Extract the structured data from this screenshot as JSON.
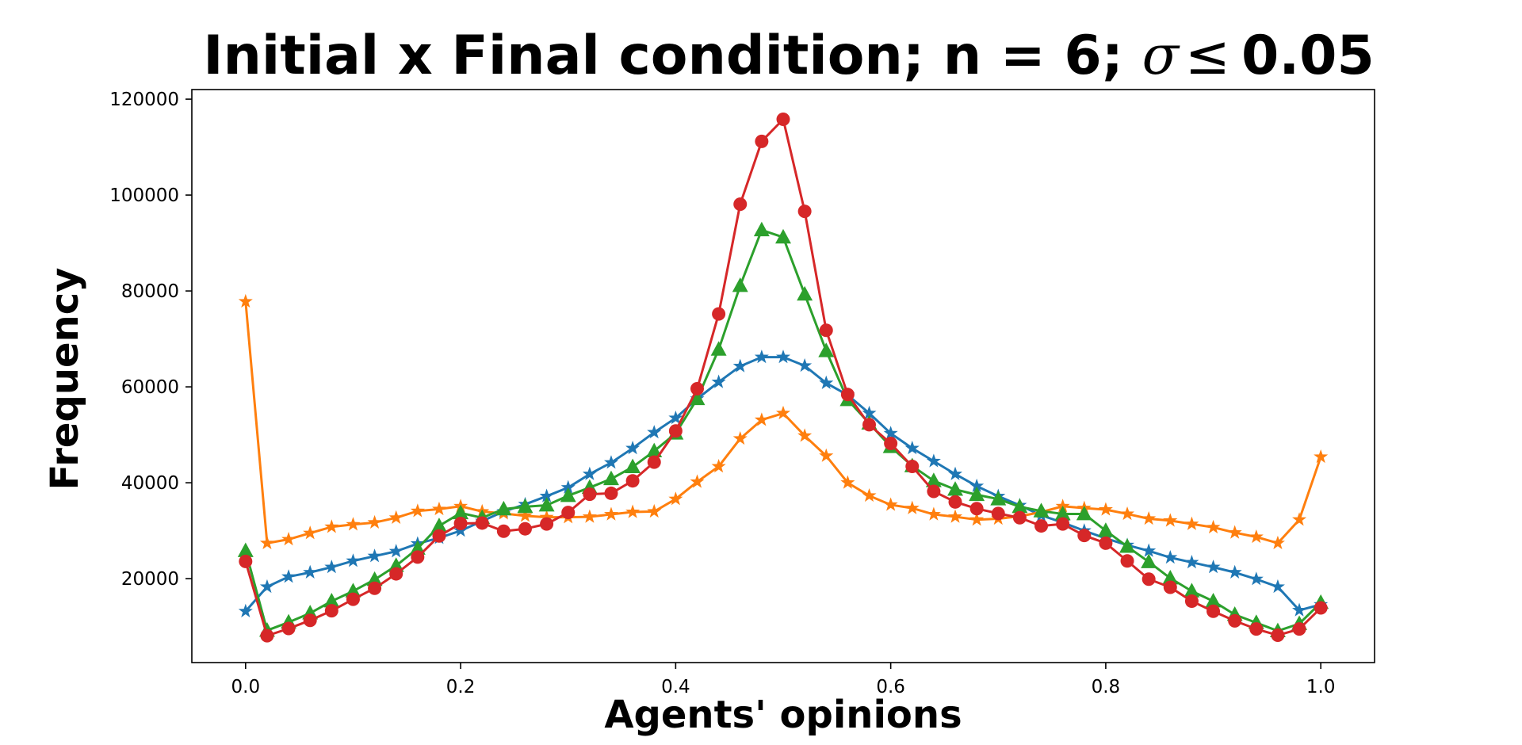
{
  "chart_data": {
    "type": "line",
    "title": "Initial x Final condition; n = 6; σ ≤ 0.05",
    "title_parts": {
      "prefix": "Initial x Final condition; n = 6; ",
      "sigma": "σ",
      "le": "≤",
      "suffix": "0.05"
    },
    "xlabel": "Agents' opinions",
    "ylabel": "Frequency",
    "xlim": [
      -0.05,
      1.05
    ],
    "ylim": [
      2500,
      122000
    ],
    "xticks": [
      0.0,
      0.2,
      0.4,
      0.6,
      0.8,
      1.0
    ],
    "xtick_labels": [
      "0.0",
      "0.2",
      "0.4",
      "0.6",
      "0.8",
      "1.0"
    ],
    "yticks": [
      20000,
      40000,
      60000,
      80000,
      100000,
      120000
    ],
    "ytick_labels": [
      "20000",
      "40000",
      "60000",
      "80000",
      "100000",
      "120000"
    ],
    "grid": false,
    "legend": "none",
    "x": [
      0.0,
      0.02,
      0.04,
      0.06,
      0.08,
      0.1,
      0.12,
      0.14,
      0.16,
      0.18,
      0.2,
      0.22,
      0.24,
      0.26,
      0.28,
      0.3,
      0.32,
      0.34,
      0.36,
      0.38,
      0.4,
      0.42,
      0.44,
      0.46,
      0.48,
      0.5,
      0.52,
      0.54,
      0.56,
      0.58,
      0.6,
      0.62,
      0.64,
      0.66,
      0.68,
      0.7,
      0.72,
      0.74,
      0.76,
      0.78,
      0.8,
      0.82,
      0.84,
      0.86,
      0.88,
      0.9,
      0.92,
      0.94,
      0.96,
      0.98,
      1.0
    ],
    "series": [
      {
        "color": "#1f77b4",
        "marker": "star",
        "values": [
          13200,
          18300,
          20400,
          21300,
          22400,
          23700,
          24700,
          25700,
          27300,
          28500,
          30000,
          32000,
          34000,
          35500,
          37200,
          39000,
          41800,
          44200,
          47200,
          50500,
          53500,
          57500,
          61000,
          64300,
          66200,
          66200,
          64400,
          60800,
          58300,
          54500,
          50300,
          47200,
          44500,
          41800,
          39300,
          37200,
          35300,
          33200,
          31700,
          30000,
          28400,
          27000,
          25800,
          24400,
          23400,
          22400,
          21300,
          19900,
          18300,
          13400,
          14600
        ]
      },
      {
        "color": "#ff7f0e",
        "marker": "star",
        "values": [
          77800,
          27400,
          28200,
          29500,
          30800,
          31300,
          31700,
          32700,
          34100,
          34500,
          35100,
          34000,
          33600,
          33100,
          32800,
          32800,
          32900,
          33400,
          33900,
          34000,
          36600,
          40200,
          43400,
          49200,
          53100,
          54500,
          49800,
          45600,
          40000,
          37300,
          35400,
          34700,
          33400,
          32900,
          32300,
          32500,
          33000,
          33900,
          35100,
          34700,
          34400,
          33500,
          32500,
          32100,
          31400,
          30700,
          29600,
          28700,
          27400,
          32300,
          45400
        ]
      },
      {
        "color": "#2ca02c",
        "marker": "triangle",
        "values": [
          25800,
          9200,
          10900,
          12800,
          15300,
          17400,
          19800,
          22700,
          26300,
          31000,
          33700,
          32700,
          34500,
          35000,
          35300,
          37300,
          39000,
          40800,
          43300,
          46600,
          50300,
          57500,
          67800,
          81100,
          92700,
          91200,
          79300,
          67500,
          57300,
          52400,
          47500,
          43500,
          40400,
          38600,
          37500,
          36600,
          35000,
          34100,
          33500,
          33500,
          30000,
          26700,
          23500,
          20100,
          17400,
          15300,
          12500,
          10800,
          9100,
          10600,
          15000
        ]
      },
      {
        "color": "#d62728",
        "marker": "circle",
        "values": [
          23600,
          8100,
          9600,
          11300,
          13300,
          15700,
          18000,
          21000,
          24500,
          28900,
          31500,
          31600,
          29900,
          30400,
          31400,
          33800,
          37600,
          37800,
          40400,
          44300,
          50800,
          59600,
          75200,
          98100,
          111200,
          115800,
          96600,
          71800,
          58400,
          52100,
          48200,
          43400,
          38200,
          36000,
          34600,
          33600,
          32700,
          31000,
          31400,
          29000,
          27400,
          23700,
          19900,
          18200,
          15300,
          13200,
          11200,
          9500,
          8200,
          9500,
          13900
        ]
      }
    ]
  }
}
